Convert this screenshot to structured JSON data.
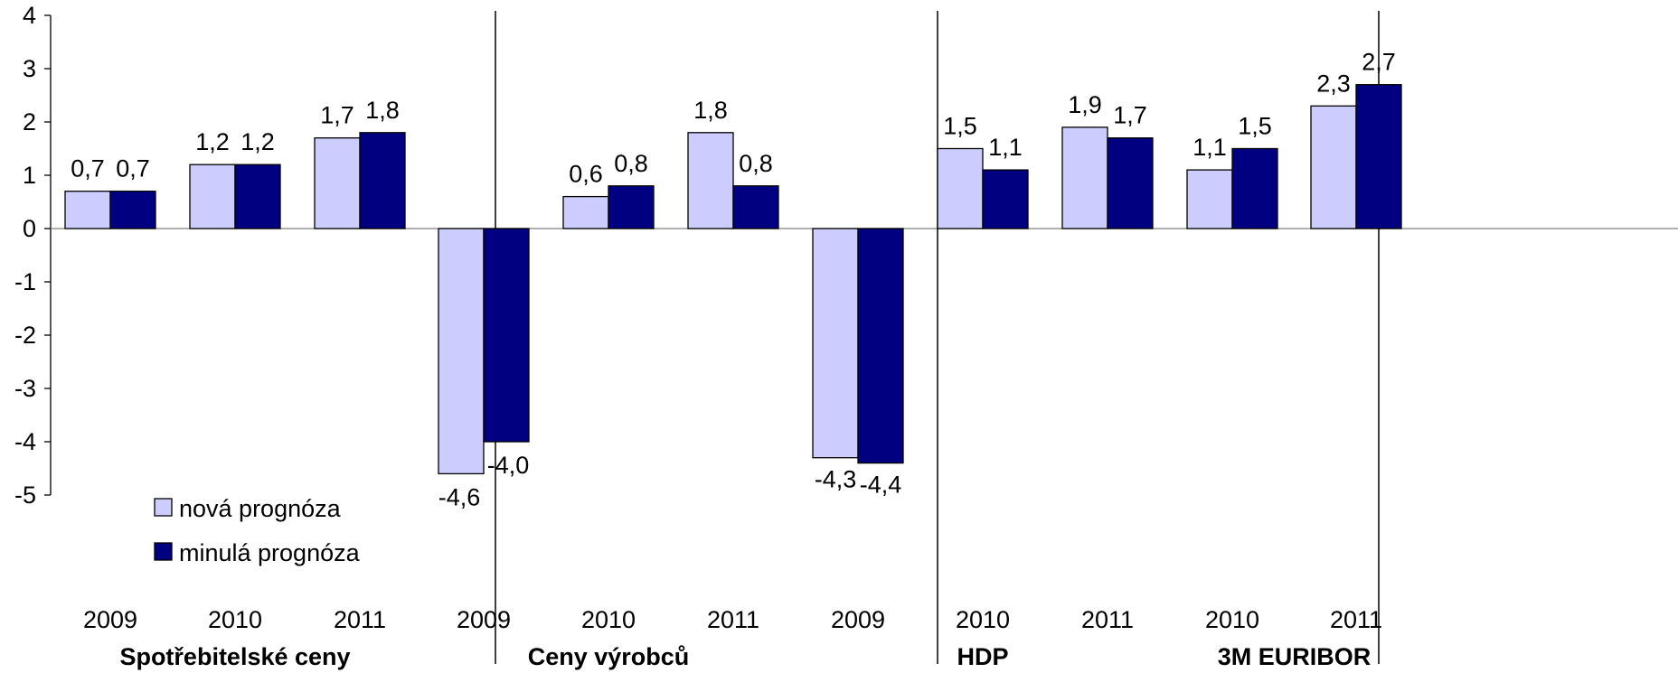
{
  "chart_data": {
    "type": "bar",
    "ylim": [
      -5,
      4
    ],
    "yticks": [
      4,
      3,
      2,
      1,
      0,
      -1,
      -2,
      -3,
      -4,
      -5
    ],
    "grid": false,
    "legend_position": "bottom-left",
    "series": [
      {
        "name": "nová prognóza",
        "color": "#ccccff"
      },
      {
        "name": "minulá prognóza",
        "color": "#000080"
      }
    ],
    "groups": [
      {
        "label": "Spotřebitelské ceny",
        "categories": [
          "2009",
          "2010",
          "2011"
        ],
        "values": [
          [
            0.7,
            0.7
          ],
          [
            1.2,
            1.2
          ],
          [
            1.7,
            1.8
          ]
        ],
        "labels": [
          [
            "0,7",
            "0,7"
          ],
          [
            "1,2",
            "1,2"
          ],
          [
            "1,7",
            "1,8"
          ]
        ]
      },
      {
        "label": "Ceny výrobců",
        "categories": [
          "2009",
          "2010",
          "2011"
        ],
        "values": [
          [
            -4.6,
            -4.0
          ],
          [
            0.6,
            0.8
          ],
          [
            1.8,
            0.8
          ]
        ],
        "labels": [
          [
            "-4,6",
            "-4,0"
          ],
          [
            "0,6",
            "0,8"
          ],
          [
            "1,8",
            "0,8"
          ]
        ]
      },
      {
        "label": "HDP",
        "categories": [
          "2009",
          "2010",
          "2011"
        ],
        "values": [
          [
            -4.3,
            -4.4
          ],
          [
            1.5,
            1.1
          ],
          [
            1.9,
            1.7
          ]
        ],
        "labels": [
          [
            "-4,3",
            "-4,4"
          ],
          [
            "1,5",
            "1,1"
          ],
          [
            "1,9",
            "1,7"
          ]
        ]
      },
      {
        "label": "3M EURIBOR",
        "categories": [
          "2010",
          "2011"
        ],
        "values": [
          [
            1.1,
            1.5
          ],
          [
            2.3,
            2.7
          ]
        ],
        "labels": [
          [
            "1,1",
            "1,5"
          ],
          [
            "2,3",
            "2,7"
          ]
        ]
      }
    ]
  }
}
